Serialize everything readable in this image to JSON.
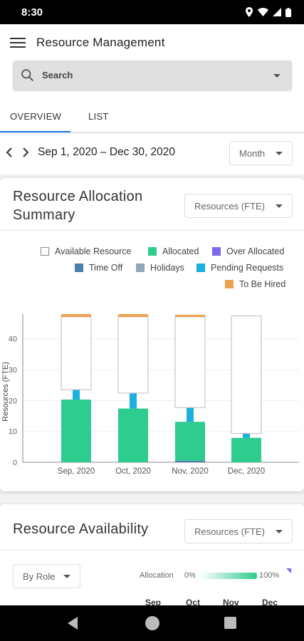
{
  "status": {
    "time": "8:30"
  },
  "header": {
    "title": "Resource Management",
    "search_label": "Search"
  },
  "tabs": [
    {
      "label": "OVERVIEW",
      "active": true
    },
    {
      "label": "LIST",
      "active": false
    }
  ],
  "date_range": "Sep 1, 2020 – Dec 30, 2020",
  "period_dropdown": "Month",
  "allocation_card": {
    "title": "Resource Allocation Summary",
    "unit_dropdown": "Resources (FTE)"
  },
  "chart_data": {
    "type": "bar",
    "stacked": true,
    "categories": [
      "Sep, 2020",
      "Oct, 2020",
      "Nov, 2020",
      "Dec, 2020"
    ],
    "ylabel": "Resources (FTE)",
    "ylim": [
      0,
      48
    ],
    "yticks": [
      0,
      10,
      20,
      30,
      40
    ],
    "legend": [
      "Available Resource",
      "Allocated",
      "Over Allocated",
      "Time Off",
      "Holidays",
      "Pending Requests",
      "To Be Hired"
    ],
    "legend_position": "top-right",
    "grid": true,
    "colors": {
      "Available Resource": "#ffffff",
      "Allocated": "#2ecc8f",
      "Over Allocated": "#7b68ee",
      "Time Off": "#4a7fa7",
      "Holidays": "#8fa6b8",
      "Pending Requests": "#1ab0e0",
      "To Be Hired": "#f0a050"
    },
    "series": [
      {
        "name": "Time Off",
        "values": [
          0,
          0,
          0.5,
          0
        ]
      },
      {
        "name": "Allocated",
        "values": [
          20.3,
          17.4,
          12.6,
          7.9
        ]
      },
      {
        "name": "Pending Requests",
        "values": [
          3.2,
          5.0,
          4.6,
          1.4
        ]
      },
      {
        "name": "Available Resource",
        "values": [
          23.6,
          24.7,
          29.4,
          38.1
        ]
      },
      {
        "name": "To Be Hired",
        "values": [
          0.9,
          0.9,
          0.7,
          0
        ]
      }
    ]
  },
  "availability_card": {
    "title": "Resource Availability",
    "unit_dropdown": "Resources (FTE)",
    "group_dropdown": "By Role",
    "allocation_label": "Allocation",
    "allocation_min": "0%",
    "allocation_max": "100%",
    "months": [
      "Sep",
      "Oct",
      "Nov",
      "Dec"
    ]
  }
}
